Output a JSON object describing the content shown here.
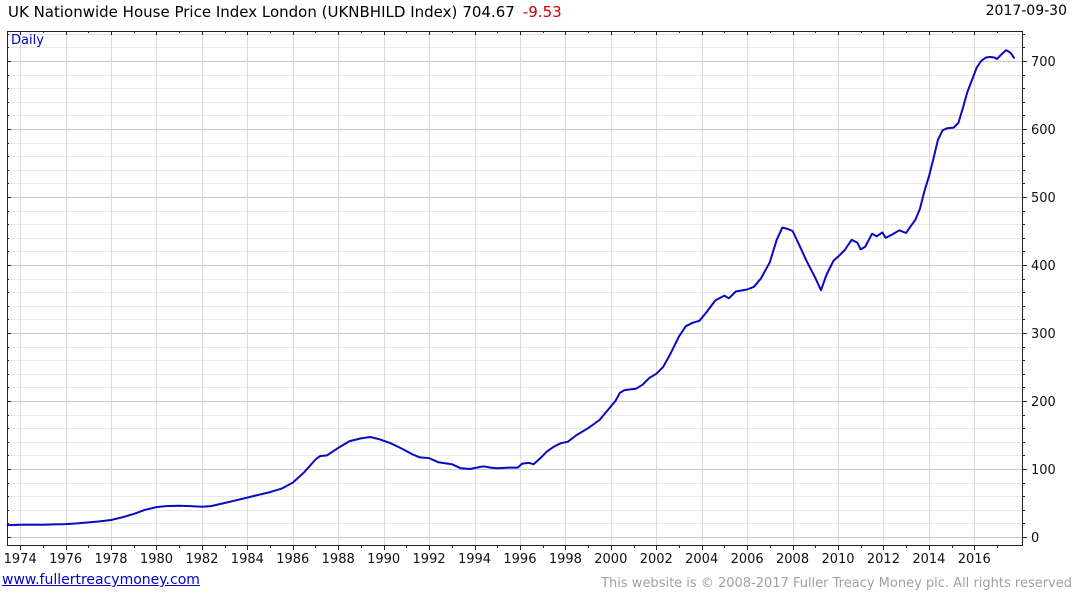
{
  "header": {
    "title": "UK Nationwide House Price Index London (UKNBHILD Index)",
    "last_price": "704.67",
    "change": "-9.53",
    "date": "2017-09-30"
  },
  "chart": {
    "frequency_label": "Daily"
  },
  "footer": {
    "website": "www.fullertreacymoney.com",
    "copyright": "This website is © 2008-2017 Fuller Treacy Money plc. All rights reserved"
  },
  "colors": {
    "series_line": "#0a0ac4",
    "change_negative": "#cc0000",
    "link_blue": "#0000cc",
    "grid_minor": "#e8e8e8",
    "grid_major": "#c9c9c9",
    "grid_vertical": "#d9d9d9",
    "frame": "#222222",
    "copyright_gray": "#a0a0a0"
  },
  "chart_data": {
    "type": "line",
    "title": "UK Nationwide House Price Index London (UKNBHILD Index)",
    "xlabel": "",
    "ylabel": "",
    "legend_position": "none",
    "grid": true,
    "xlim": [
      1973.42,
      2018.1
    ],
    "ylim": [
      -11.76,
      744.12
    ],
    "x_ticks_major": [
      1974,
      1976,
      1978,
      1980,
      1982,
      1984,
      1986,
      1988,
      1990,
      1992,
      1994,
      1996,
      1998,
      2000,
      2002,
      2004,
      2006,
      2008,
      2010,
      2012,
      2014,
      2016
    ],
    "x_ticks_minor": [
      1975,
      1977,
      1979,
      1981,
      1983,
      1985,
      1987,
      1989,
      1991,
      1993,
      1995,
      1997,
      1999,
      2001,
      2003,
      2005,
      2007,
      2009,
      2011,
      2013,
      2015,
      2017
    ],
    "y_ticks_major": [
      0,
      100,
      200,
      300,
      400,
      500,
      600,
      700
    ],
    "y_tick_minor_step": 20,
    "series": [
      {
        "name": "UKNBHILD Index",
        "color": "#0a0ac4",
        "points": [
          [
            1973.45,
            17.5
          ],
          [
            1973.7,
            17.7
          ],
          [
            1974.0,
            18
          ],
          [
            1974.5,
            18
          ],
          [
            1975.0,
            18
          ],
          [
            1975.5,
            18.5
          ],
          [
            1976.0,
            19
          ],
          [
            1976.5,
            20
          ],
          [
            1977.0,
            21.5
          ],
          [
            1977.5,
            23
          ],
          [
            1978.0,
            25
          ],
          [
            1978.5,
            29
          ],
          [
            1979.0,
            34
          ],
          [
            1979.5,
            40
          ],
          [
            1980.0,
            44
          ],
          [
            1980.4,
            45.5
          ],
          [
            1981.0,
            46
          ],
          [
            1981.5,
            45.5
          ],
          [
            1982.0,
            44.5
          ],
          [
            1982.4,
            45.5
          ],
          [
            1983.0,
            50
          ],
          [
            1983.5,
            54
          ],
          [
            1984.0,
            58
          ],
          [
            1984.5,
            62
          ],
          [
            1985.0,
            66
          ],
          [
            1985.5,
            71
          ],
          [
            1986.0,
            80
          ],
          [
            1986.5,
            95
          ],
          [
            1987.0,
            114
          ],
          [
            1987.2,
            119
          ],
          [
            1987.5,
            120
          ],
          [
            1988.0,
            131
          ],
          [
            1988.5,
            141
          ],
          [
            1989.0,
            145
          ],
          [
            1989.4,
            147
          ],
          [
            1989.8,
            144
          ],
          [
            1990.3,
            138
          ],
          [
            1990.8,
            130
          ],
          [
            1991.3,
            121
          ],
          [
            1991.6,
            117
          ],
          [
            1992.0,
            116
          ],
          [
            1992.4,
            110
          ],
          [
            1993.0,
            107
          ],
          [
            1993.4,
            101
          ],
          [
            1993.8,
            100
          ],
          [
            1994.1,
            102
          ],
          [
            1994.4,
            104
          ],
          [
            1994.7,
            102
          ],
          [
            1995.0,
            101
          ],
          [
            1995.5,
            102
          ],
          [
            1995.9,
            102
          ],
          [
            1996.1,
            108
          ],
          [
            1996.4,
            109
          ],
          [
            1996.6,
            107
          ],
          [
            1996.9,
            116
          ],
          [
            1997.2,
            126
          ],
          [
            1997.5,
            133
          ],
          [
            1997.8,
            138
          ],
          [
            1998.1,
            140
          ],
          [
            1998.5,
            150
          ],
          [
            1999.0,
            160
          ],
          [
            1999.5,
            172
          ],
          [
            1999.8,
            184
          ],
          [
            2000.2,
            200
          ],
          [
            2000.4,
            212
          ],
          [
            2000.6,
            216
          ],
          [
            2001.1,
            218
          ],
          [
            2001.4,
            224
          ],
          [
            2001.7,
            234
          ],
          [
            2002.0,
            240
          ],
          [
            2002.3,
            250
          ],
          [
            2002.6,
            268
          ],
          [
            2003.0,
            295
          ],
          [
            2003.3,
            310
          ],
          [
            2003.6,
            315
          ],
          [
            2003.9,
            318
          ],
          [
            2004.2,
            330
          ],
          [
            2004.6,
            348
          ],
          [
            2005.0,
            355
          ],
          [
            2005.2,
            351
          ],
          [
            2005.5,
            361
          ],
          [
            2006.0,
            364
          ],
          [
            2006.3,
            368
          ],
          [
            2006.6,
            380
          ],
          [
            2007.0,
            404
          ],
          [
            2007.3,
            437
          ],
          [
            2007.55,
            455
          ],
          [
            2007.8,
            453
          ],
          [
            2008.0,
            450
          ],
          [
            2008.3,
            429
          ],
          [
            2008.6,
            407
          ],
          [
            2009.0,
            381
          ],
          [
            2009.25,
            363
          ],
          [
            2009.5,
            386
          ],
          [
            2009.8,
            406
          ],
          [
            2010.0,
            412
          ],
          [
            2010.3,
            422
          ],
          [
            2010.6,
            437
          ],
          [
            2010.85,
            433
          ],
          [
            2011.0,
            423
          ],
          [
            2011.2,
            427
          ],
          [
            2011.5,
            446
          ],
          [
            2011.7,
            442
          ],
          [
            2011.95,
            448
          ],
          [
            2012.1,
            440
          ],
          [
            2012.4,
            445
          ],
          [
            2012.7,
            451
          ],
          [
            2013.0,
            447
          ],
          [
            2013.2,
            457
          ],
          [
            2013.4,
            466
          ],
          [
            2013.6,
            482
          ],
          [
            2013.8,
            508
          ],
          [
            2014.0,
            530
          ],
          [
            2014.2,
            556
          ],
          [
            2014.4,
            584
          ],
          [
            2014.6,
            598
          ],
          [
            2014.8,
            601
          ],
          [
            2015.1,
            602
          ],
          [
            2015.3,
            609
          ],
          [
            2015.5,
            631
          ],
          [
            2015.7,
            655
          ],
          [
            2015.9,
            672
          ],
          [
            2016.1,
            690
          ],
          [
            2016.3,
            700
          ],
          [
            2016.5,
            705
          ],
          [
            2016.7,
            706
          ],
          [
            2016.9,
            705
          ],
          [
            2017.0,
            703
          ],
          [
            2017.2,
            710
          ],
          [
            2017.4,
            716
          ],
          [
            2017.6,
            712
          ],
          [
            2017.75,
            704.67
          ]
        ]
      }
    ]
  }
}
